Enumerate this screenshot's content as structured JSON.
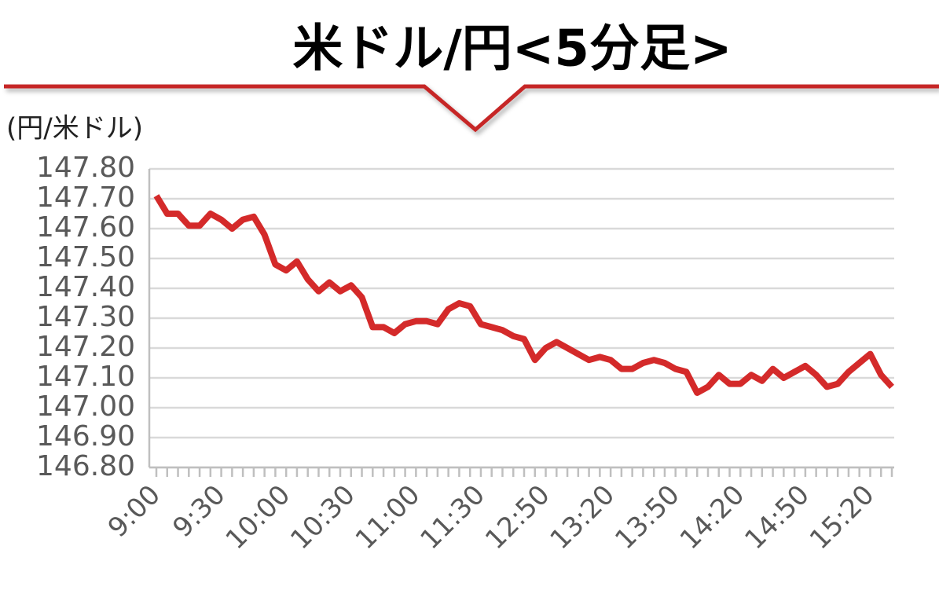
{
  "chart_data": {
    "type": "line",
    "title": "米ドル/円<5分足>",
    "y_label": "(円/米ドル)",
    "categories": [
      "9:00",
      null,
      null,
      null,
      null,
      null,
      "9:30",
      null,
      null,
      null,
      null,
      null,
      "10:00",
      null,
      null,
      null,
      null,
      null,
      "10:30",
      null,
      null,
      null,
      null,
      null,
      "11:00",
      null,
      null,
      null,
      null,
      null,
      "11:30",
      null,
      null,
      null,
      null,
      null,
      "12:50",
      null,
      null,
      null,
      null,
      null,
      "13:20",
      null,
      null,
      null,
      null,
      null,
      "13:50",
      null,
      null,
      null,
      null,
      null,
      "14:20",
      null,
      null,
      null,
      null,
      null,
      "14:50",
      null,
      null,
      null,
      null,
      null,
      "15:20",
      null,
      null
    ],
    "series": [
      {
        "name": "米ドル/円",
        "color": "#d42a2a",
        "values": [
          147.71,
          147.65,
          147.65,
          147.61,
          147.61,
          147.65,
          147.63,
          147.6,
          147.63,
          147.64,
          147.58,
          147.48,
          147.46,
          147.49,
          147.43,
          147.39,
          147.42,
          147.39,
          147.41,
          147.37,
          147.27,
          147.27,
          147.25,
          147.28,
          147.29,
          147.29,
          147.28,
          147.33,
          147.35,
          147.34,
          147.28,
          147.27,
          147.26,
          147.24,
          147.23,
          147.16,
          147.2,
          147.22,
          147.2,
          147.18,
          147.16,
          147.17,
          147.16,
          147.13,
          147.13,
          147.15,
          147.16,
          147.15,
          147.13,
          147.12,
          147.05,
          147.07,
          147.11,
          147.08,
          147.08,
          147.11,
          147.09,
          147.13,
          147.1,
          147.12,
          147.14,
          147.11,
          147.07,
          147.08,
          147.12,
          147.15,
          147.18,
          147.11,
          147.07
        ]
      }
    ],
    "ylim": [
      146.8,
      147.8
    ],
    "yticks": [
      {
        "value": 146.8,
        "label": "146.80"
      },
      {
        "value": 146.9,
        "label": "146.90"
      },
      {
        "value": 147.0,
        "label": "147.00"
      },
      {
        "value": 147.1,
        "label": "147.10"
      },
      {
        "value": 147.2,
        "label": "147.20"
      },
      {
        "value": 147.3,
        "label": "147.30"
      },
      {
        "value": 147.4,
        "label": "147.40"
      },
      {
        "value": 147.5,
        "label": "147.50"
      },
      {
        "value": 147.6,
        "label": "147.60"
      },
      {
        "value": 147.7,
        "label": "147.70"
      },
      {
        "value": 147.8,
        "label": "147.80"
      }
    ],
    "grid": true
  }
}
